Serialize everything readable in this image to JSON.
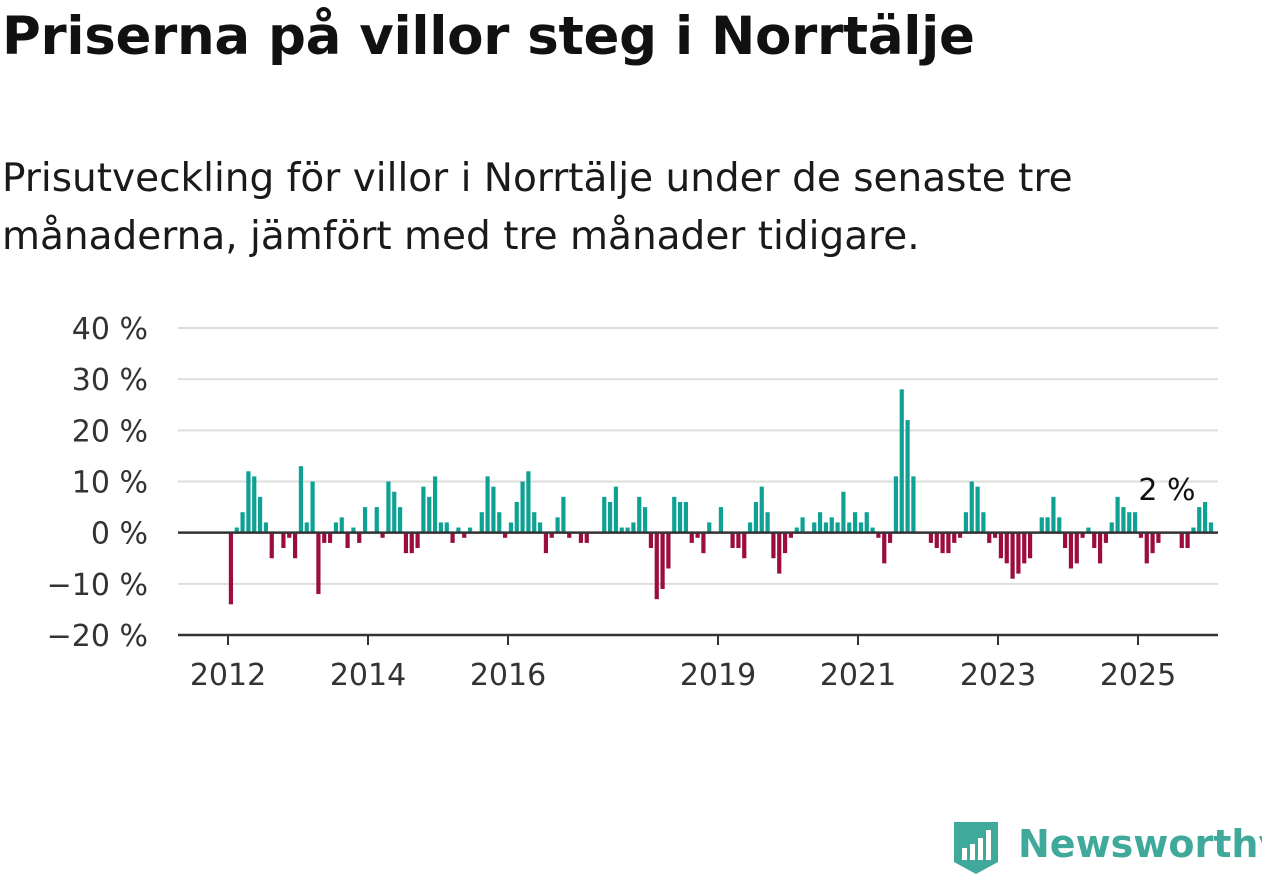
{
  "title": "Priserna på villor steg i Norrtälje",
  "subtitle": "Prisutveckling för villor i Norrtälje under de senaste tre månaderna, jämfört med tre månader tidigare.",
  "logo_text": "Newsworthy",
  "colors": {
    "positive": "#10a195",
    "negative": "#9c0c3f",
    "grid": "#dddddd",
    "axis": "#333333",
    "logo": "#3fa99b"
  },
  "chart_data": {
    "type": "bar",
    "title": "Priserna på villor steg i Norrtälje",
    "subtitle": "Prisutveckling för villor i Norrtälje under de senaste tre månaderna, jämfört med tre månader tidigare.",
    "ylim": [
      -20,
      40
    ],
    "y_ticks": [
      40,
      30,
      20,
      10,
      0,
      -10,
      -20
    ],
    "y_tick_labels": [
      "40 %",
      "30 %",
      "20 %",
      "10 %",
      "0 %",
      "−10 %",
      "−20 %"
    ],
    "x_ticks": [
      2012,
      2014,
      2016,
      2019,
      2021,
      2023,
      2025
    ],
    "x_tick_labels": [
      "2012",
      "2014",
      "2016",
      "2019",
      "2021",
      "2023",
      "2025"
    ],
    "grid": true,
    "x_start": "2012-01",
    "x_end": "2025-06",
    "annotation": "2 %",
    "values": [
      -14,
      1,
      4,
      12,
      11,
      7,
      2,
      -5,
      0,
      -3,
      -1,
      -5,
      13,
      2,
      10,
      -12,
      -2,
      -2,
      2,
      3,
      -3,
      1,
      -2,
      5,
      0,
      5,
      -1,
      10,
      8,
      5,
      -4,
      -4,
      -3,
      9,
      7,
      11,
      2,
      2,
      -2,
      1,
      -1,
      1,
      0,
      4,
      11,
      9,
      4,
      -1,
      2,
      6,
      10,
      12,
      4,
      2,
      -4,
      -1,
      3,
      7,
      -1,
      0,
      -2,
      -2,
      0,
      0,
      7,
      6,
      9,
      1,
      1,
      2,
      7,
      5,
      -3,
      -13,
      -11,
      -7,
      7,
      6,
      6,
      -2,
      -1,
      -4,
      2,
      0,
      5,
      0,
      -3,
      -3,
      -5,
      2,
      6,
      9,
      4,
      -5,
      -8,
      -4,
      -1,
      1,
      3,
      0,
      2,
      4,
      2,
      3,
      2,
      8,
      2,
      4,
      2,
      4,
      1,
      -1,
      -6,
      -2,
      11,
      28,
      22,
      11,
      0,
      0,
      -2,
      -3,
      -4,
      -4,
      -2,
      -1,
      4,
      10,
      9,
      4,
      -2,
      -1,
      -5,
      -6,
      -9,
      -8,
      -6,
      -5,
      0,
      3,
      3,
      7,
      3,
      -3,
      -7,
      -6,
      -1,
      1,
      -3,
      -6,
      -2,
      2,
      7,
      5,
      4,
      4,
      -1,
      -6,
      -4,
      -2,
      0,
      0,
      0,
      -3,
      -3,
      1,
      5,
      6,
      2
    ]
  }
}
